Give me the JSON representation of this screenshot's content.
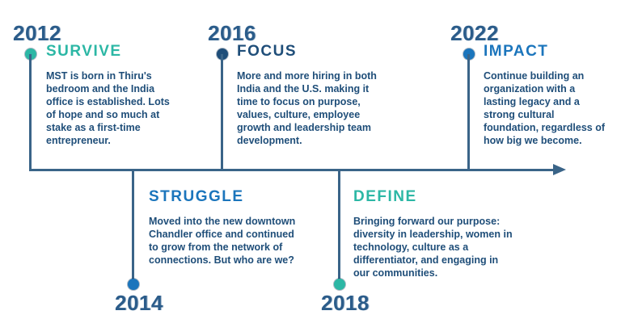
{
  "timeline": {
    "direction": "left-to-right",
    "colors": {
      "teal": "#2cb7a5",
      "blue": "#1b75bc",
      "navy": "#1f4e79",
      "axis_line": "#3a6488",
      "year_text": "#2b5c8a",
      "body_text": "#1f4e79"
    },
    "items": [
      {
        "year": "2012",
        "title": "SURVIVE",
        "accent": "teal",
        "position": "top",
        "description": "MST is born in Thiru's bedroom and the India office is established. Lots of hope and so much at stake as a first-time entrepreneur."
      },
      {
        "year": "2014",
        "title": "STRUGGLE",
        "accent": "blue",
        "position": "bottom",
        "description": "Moved into the new downtown Chandler office and continued to grow from the network of connections. But who are we?"
      },
      {
        "year": "2016",
        "title": "FOCUS",
        "accent": "navy",
        "position": "top",
        "description": "More and more hiring in both India and the U.S. making it time to focus on purpose, values, culture, employee growth and leadership team development."
      },
      {
        "year": "2018",
        "title": "DEFINE",
        "accent": "teal",
        "position": "bottom",
        "description": "Bringing forward our purpose: diversity in leadership, women in technology, culture as a differentiator, and engaging in our communities."
      },
      {
        "year": "2022",
        "title": "IMPACT",
        "accent": "blue",
        "position": "top",
        "description": "Continue building an organization with a lasting legacy and a strong cultural foundation, regardless of how big we become."
      }
    ]
  }
}
